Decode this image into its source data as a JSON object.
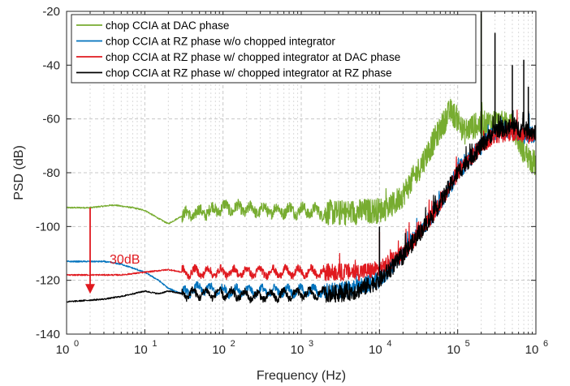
{
  "chart_data": {
    "type": "line",
    "x_scale": "log",
    "xlabel": "Frequency (Hz)",
    "ylabel": "PSD (dB)",
    "xlim": [
      1,
      1000000
    ],
    "ylim": [
      -140,
      -20
    ],
    "grid": "log-minor, dashed",
    "legend_position": "top-left",
    "x_ticks": [
      1,
      10,
      100,
      1000,
      10000,
      100000,
      1000000
    ],
    "x_tick_labels": [
      {
        "base": "10",
        "exp": "0"
      },
      {
        "base": "10",
        "exp": "1"
      },
      {
        "base": "10",
        "exp": "2"
      },
      {
        "base": "10",
        "exp": "3"
      },
      {
        "base": "10",
        "exp": "4"
      },
      {
        "base": "10",
        "exp": "5"
      },
      {
        "base": "10",
        "exp": "6"
      }
    ],
    "y_ticks": [
      -140,
      -120,
      -100,
      -80,
      -60,
      -40,
      -20
    ],
    "y_tick_labels": [
      "-140",
      "-120",
      "-100",
      "-80",
      "-60",
      "-40",
      "-20"
    ],
    "series": [
      {
        "name": "chop CCIA at DAC phase",
        "color": "#77AC30",
        "noise": 3,
        "x": [
          1,
          2,
          4,
          7,
          10,
          15,
          20,
          30,
          50,
          100,
          300,
          1000,
          3000,
          10000,
          15000,
          20000,
          30000,
          50000,
          70000,
          80000,
          100000,
          120000,
          150000,
          200000,
          300000,
          500000,
          700000,
          1000000
        ],
        "y": [
          -93,
          -93,
          -92,
          -93,
          -94,
          -97,
          -99,
          -96,
          -95,
          -93,
          -94,
          -94,
          -95,
          -94,
          -92,
          -88,
          -80,
          -68,
          -60,
          -57,
          -60,
          -65,
          -63,
          -62,
          -61,
          -63,
          -72,
          -77
        ]
      },
      {
        "name": "chop CCIA at RZ phase w/o chopped integrator",
        "color": "#0072BD",
        "noise": 2,
        "x": [
          1,
          3,
          5,
          10,
          15,
          20,
          30,
          50,
          100,
          300,
          1000,
          3000,
          5000,
          10000,
          20000,
          50000,
          100000,
          200000,
          300000,
          500000,
          700000,
          1000000
        ],
        "y": [
          -113,
          -113,
          -114,
          -117,
          -120,
          -123,
          -125,
          -123,
          -124,
          -124,
          -124,
          -124,
          -123,
          -120,
          -110,
          -95,
          -80,
          -70,
          -65,
          -64,
          -66,
          -66
        ]
      },
      {
        "name": "chop CCIA at RZ phase w/ chopped integrator at DAC phase",
        "color": "#E0191F",
        "noise": 2,
        "x": [
          1,
          3,
          5,
          10,
          20,
          30,
          50,
          100,
          300,
          1000,
          3000,
          5000,
          10000,
          20000,
          50000,
          100000,
          200000,
          300000,
          500000,
          700000,
          1000000
        ],
        "y": [
          -118,
          -118,
          -118,
          -117,
          -116,
          -117,
          -117,
          -117,
          -117,
          -117,
          -117,
          -117,
          -116,
          -110,
          -95,
          -80,
          -70,
          -66,
          -65,
          -66,
          -66
        ]
      },
      {
        "name": "chop CCIA at RZ phase w/ chopped integrator at RZ phase",
        "color": "#000000",
        "noise": 2,
        "x": [
          1,
          3,
          5,
          10,
          15,
          20,
          30,
          50,
          100,
          300,
          1000,
          3000,
          5000,
          10000,
          20000,
          50000,
          100000,
          200000,
          300000,
          500000,
          700000,
          1000000
        ],
        "y": [
          -128,
          -127,
          -126,
          -124,
          -125,
          -124,
          -125,
          -125,
          -125,
          -126,
          -125,
          -125,
          -124,
          -120,
          -111,
          -95,
          -80,
          -70,
          -64,
          -63,
          -64,
          -65
        ]
      }
    ],
    "spikes": [
      {
        "series": 1,
        "x": 10000,
        "y": -105
      },
      {
        "series": 2,
        "x": 10000,
        "y": -102
      },
      {
        "series": 3,
        "x": 10000,
        "y": -100
      },
      {
        "series": 0,
        "x": 200000,
        "y": -20
      },
      {
        "series": 3,
        "x": 200000,
        "y": -20
      },
      {
        "series": 3,
        "x": 300000,
        "y": -28
      },
      {
        "series": 3,
        "x": 500000,
        "y": -40
      },
      {
        "series": 3,
        "x": 700000,
        "y": -38
      },
      {
        "series": 3,
        "x": 800000,
        "y": -48
      }
    ],
    "annotation": {
      "text": "30dB",
      "color": "#E0191F",
      "arrow_x": 2,
      "arrow_from_y": -93,
      "arrow_to_y": -125,
      "text_x": 2.1,
      "text_y": -112
    }
  }
}
